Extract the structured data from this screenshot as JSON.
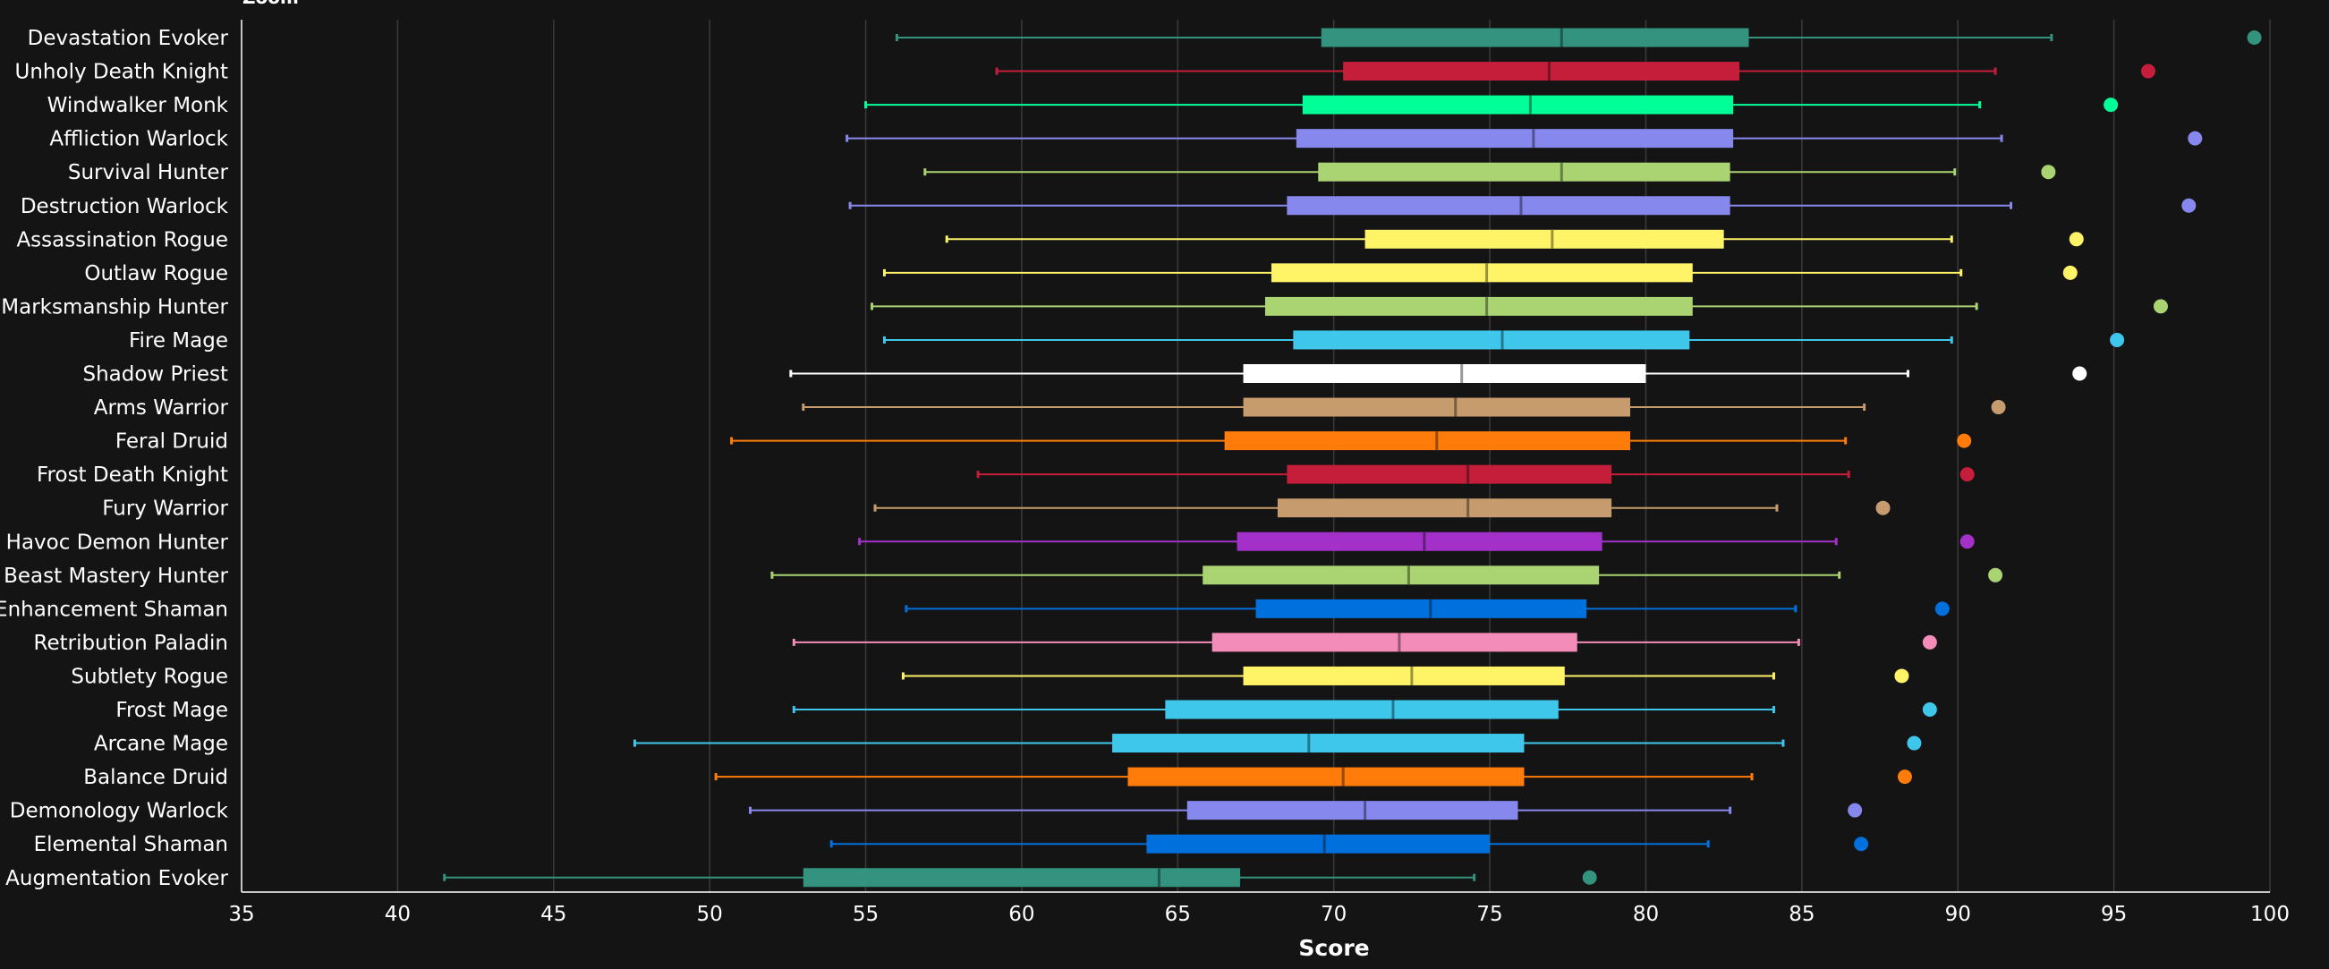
{
  "chart_data": {
    "type": "boxplot",
    "title": "",
    "top_cut_text": "Zoom",
    "xlabel": "Score",
    "xlim": [
      35,
      100
    ],
    "x_ticks": [
      35,
      40,
      45,
      50,
      55,
      60,
      65,
      70,
      75,
      80,
      85,
      90,
      95,
      100
    ],
    "grid": true,
    "orientation": "horizontal",
    "series": [
      {
        "name": "Devastation Evoker",
        "color": "#33937F",
        "min": 56.0,
        "q1": 69.6,
        "median": 77.3,
        "q3": 83.3,
        "max": 93.0,
        "outlier": 99.5
      },
      {
        "name": "Unholy Death Knight",
        "color": "#C41E3A",
        "min": 59.2,
        "q1": 70.3,
        "median": 76.9,
        "q3": 83.0,
        "max": 91.2,
        "outlier": 96.1
      },
      {
        "name": "Windwalker Monk",
        "color": "#00FF98",
        "min": 55.0,
        "q1": 69.0,
        "median": 76.3,
        "q3": 82.8,
        "max": 90.7,
        "outlier": 94.9
      },
      {
        "name": "Affliction Warlock",
        "color": "#8788EE",
        "min": 54.4,
        "q1": 68.8,
        "median": 76.4,
        "q3": 82.8,
        "max": 91.4,
        "outlier": 97.6
      },
      {
        "name": "Survival Hunter",
        "color": "#AAD372",
        "min": 56.9,
        "q1": 69.5,
        "median": 77.3,
        "q3": 82.7,
        "max": 89.9,
        "outlier": 92.9
      },
      {
        "name": "Destruction Warlock",
        "color": "#8788EE",
        "min": 54.5,
        "q1": 68.5,
        "median": 76.0,
        "q3": 82.7,
        "max": 91.7,
        "outlier": 97.4
      },
      {
        "name": "Assassination Rogue",
        "color": "#FFF468",
        "min": 57.6,
        "q1": 71.0,
        "median": 77.0,
        "q3": 82.5,
        "max": 89.8,
        "outlier": 93.8
      },
      {
        "name": "Outlaw Rogue",
        "color": "#FFF468",
        "min": 55.6,
        "q1": 68.0,
        "median": 74.9,
        "q3": 81.5,
        "max": 90.1,
        "outlier": 93.6
      },
      {
        "name": "Marksmanship Hunter",
        "color": "#AAD372",
        "min": 55.2,
        "q1": 67.8,
        "median": 74.9,
        "q3": 81.5,
        "max": 90.6,
        "outlier": 96.5
      },
      {
        "name": "Fire Mage",
        "color": "#3FC7EB",
        "min": 55.6,
        "q1": 68.7,
        "median": 75.4,
        "q3": 81.4,
        "max": 89.8,
        "outlier": 95.1
      },
      {
        "name": "Shadow Priest",
        "color": "#FFFFFF",
        "min": 52.6,
        "q1": 67.1,
        "median": 74.1,
        "q3": 80.0,
        "max": 88.4,
        "outlier": 93.9
      },
      {
        "name": "Arms Warrior",
        "color": "#C69B6D",
        "min": 53.0,
        "q1": 67.1,
        "median": 73.9,
        "q3": 79.5,
        "max": 87.0,
        "outlier": 91.3
      },
      {
        "name": "Feral Druid",
        "color": "#FF7C0A",
        "min": 50.7,
        "q1": 66.5,
        "median": 73.3,
        "q3": 79.5,
        "max": 86.4,
        "outlier": 90.2
      },
      {
        "name": "Frost Death Knight",
        "color": "#C41E3A",
        "min": 58.6,
        "q1": 68.5,
        "median": 74.3,
        "q3": 78.9,
        "max": 86.5,
        "outlier": 90.3
      },
      {
        "name": "Fury Warrior",
        "color": "#C69B6D",
        "min": 55.3,
        "q1": 68.2,
        "median": 74.3,
        "q3": 78.9,
        "max": 84.2,
        "outlier": 87.6
      },
      {
        "name": "Havoc Demon Hunter",
        "color": "#A330C9",
        "min": 54.8,
        "q1": 66.9,
        "median": 72.9,
        "q3": 78.6,
        "max": 86.1,
        "outlier": 90.3
      },
      {
        "name": "Beast Mastery Hunter",
        "color": "#AAD372",
        "min": 52.0,
        "q1": 65.8,
        "median": 72.4,
        "q3": 78.5,
        "max": 86.2,
        "outlier": 91.2
      },
      {
        "name": "Enhancement Shaman",
        "color": "#0070DD",
        "min": 56.3,
        "q1": 67.5,
        "median": 73.1,
        "q3": 78.1,
        "max": 84.8,
        "outlier": 89.5
      },
      {
        "name": "Retribution Paladin",
        "color": "#F48CBA",
        "min": 52.7,
        "q1": 66.1,
        "median": 72.1,
        "q3": 77.8,
        "max": 84.9,
        "outlier": 89.1
      },
      {
        "name": "Subtlety Rogue",
        "color": "#FFF468",
        "min": 56.2,
        "q1": 67.1,
        "median": 72.5,
        "q3": 77.4,
        "max": 84.1,
        "outlier": 88.2
      },
      {
        "name": "Frost Mage",
        "color": "#3FC7EB",
        "min": 52.7,
        "q1": 64.6,
        "median": 71.9,
        "q3": 77.2,
        "max": 84.1,
        "outlier": 89.1
      },
      {
        "name": "Arcane Mage",
        "color": "#3FC7EB",
        "min": 47.6,
        "q1": 62.9,
        "median": 69.2,
        "q3": 76.1,
        "max": 84.4,
        "outlier": 88.6
      },
      {
        "name": "Balance Druid",
        "color": "#FF7C0A",
        "min": 50.2,
        "q1": 63.4,
        "median": 70.3,
        "q3": 76.1,
        "max": 83.4,
        "outlier": 88.3
      },
      {
        "name": "Demonology Warlock",
        "color": "#8788EE",
        "min": 51.3,
        "q1": 65.3,
        "median": 71.0,
        "q3": 75.9,
        "max": 82.7,
        "outlier": 86.7
      },
      {
        "name": "Elemental Shaman",
        "color": "#0070DD",
        "min": 53.9,
        "q1": 64.0,
        "median": 69.7,
        "q3": 75.0,
        "max": 82.0,
        "outlier": 86.9
      },
      {
        "name": "Augmentation Evoker",
        "color": "#33937F",
        "min": 41.5,
        "q1": 53.0,
        "median": 64.4,
        "q3": 67.0,
        "max": 74.5,
        "outlier": 78.2
      }
    ]
  }
}
